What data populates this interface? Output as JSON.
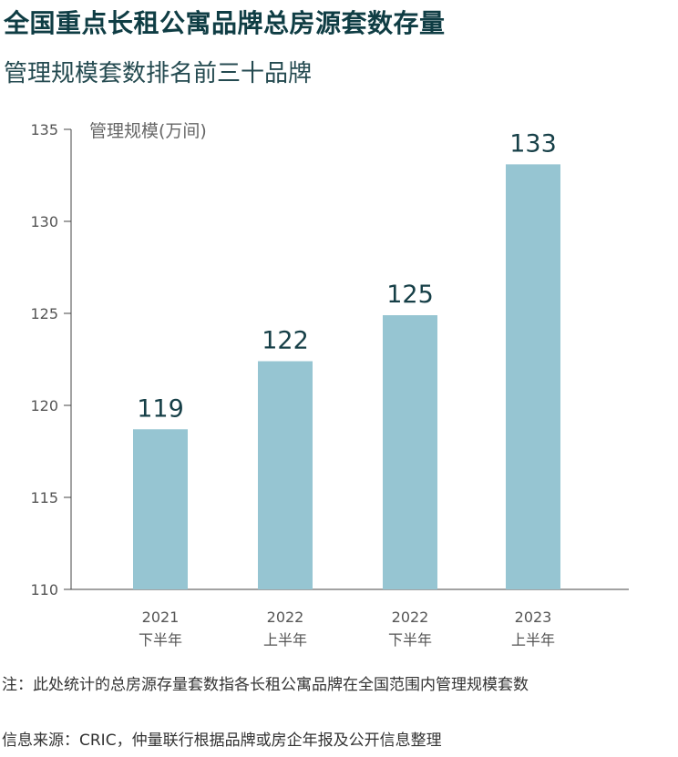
{
  "title": "全国重点长租公寓品牌总房源套数存量",
  "subtitle": "管理规模套数排名前三十品牌",
  "chart_data": {
    "type": "bar",
    "ylabel": "管理规模(万间)",
    "ylim": [
      110,
      135
    ],
    "yticks": [
      "135",
      "130",
      "125",
      "120",
      "115",
      "110"
    ],
    "categories": [
      {
        "year": "2021",
        "half": "下半年"
      },
      {
        "year": "2022",
        "half": "上半年"
      },
      {
        "year": "2022",
        "half": "下半年"
      },
      {
        "year": "2023",
        "half": "上半年"
      }
    ],
    "values": [
      118.7,
      122.4,
      124.9,
      133.1
    ],
    "value_labels": [
      "119",
      "122",
      "125",
      "133"
    ],
    "bar_color": "#96c5d2",
    "grid": false
  },
  "note": "注：此处统计的总房源存量套数指各长租公寓品牌在全国范围内管理规模套数",
  "source": "信息来源：CRIC，仲量联行根据品牌或房企年报及公开信息整理"
}
